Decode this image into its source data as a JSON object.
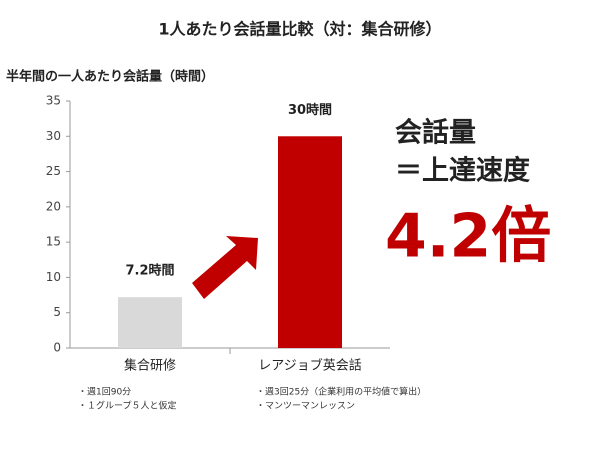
{
  "chart_data": {
    "type": "bar",
    "title": "1人あたり会話量比較（対：集合研修）",
    "y_label": "半年間の一人あたり会話量（時間）",
    "categories": [
      "集合研修",
      "レアジョブ英会話"
    ],
    "values": [
      7.2,
      30
    ],
    "value_labels": [
      "7.2時間",
      "30時間"
    ],
    "colors": [
      "#d9d9d9",
      "#c00000"
    ],
    "ylim": [
      0,
      35
    ],
    "yticks": [
      0,
      5,
      10,
      15,
      20,
      25,
      30,
      35
    ],
    "annotations": [
      "会話量",
      "＝上達速度",
      "4.2倍"
    ],
    "notes": [
      [
        "・週1回90分",
        "・１グループ５人と仮定"
      ],
      [
        "・週3回25分（企業利用の平均値で算出）",
        "・マンツーマンレッスン"
      ]
    ]
  }
}
